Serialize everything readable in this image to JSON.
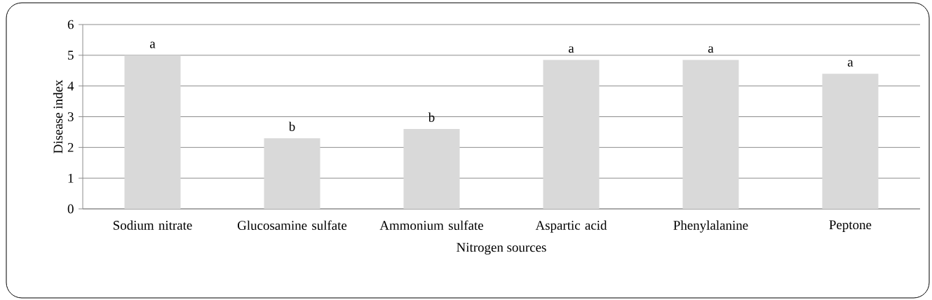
{
  "chart_data": {
    "type": "bar",
    "xlabel": "Nitrogen sources",
    "ylabel": "Disease index",
    "categories": [
      "Sodium nitrate",
      "Glucosamine sulfate",
      "Ammonium sulfate",
      "Aspartic acid",
      "Phenylalanine",
      "Peptone"
    ],
    "values": [
      5.0,
      2.3,
      2.6,
      4.85,
      4.85,
      4.4
    ],
    "color": "#d9d9d9",
    "ylim": [
      0,
      6
    ],
    "yticks": [
      0,
      1,
      2,
      3,
      4,
      5,
      6
    ],
    "grid": "y",
    "annotations": [
      {
        "text": "a",
        "x": "Sodium nitrate",
        "y": 5.0
      },
      {
        "text": "b",
        "x": "Glucosamine sulfate",
        "y": 2.3
      },
      {
        "text": "b",
        "x": "Ammonium sulfate",
        "y": 2.6
      },
      {
        "text": "a",
        "x": "Aspartic acid",
        "y": 4.85
      },
      {
        "text": "a",
        "x": "Phenylalanine",
        "y": 4.85
      },
      {
        "text": "a",
        "x": "Peptone",
        "y": 4.4
      }
    ]
  }
}
